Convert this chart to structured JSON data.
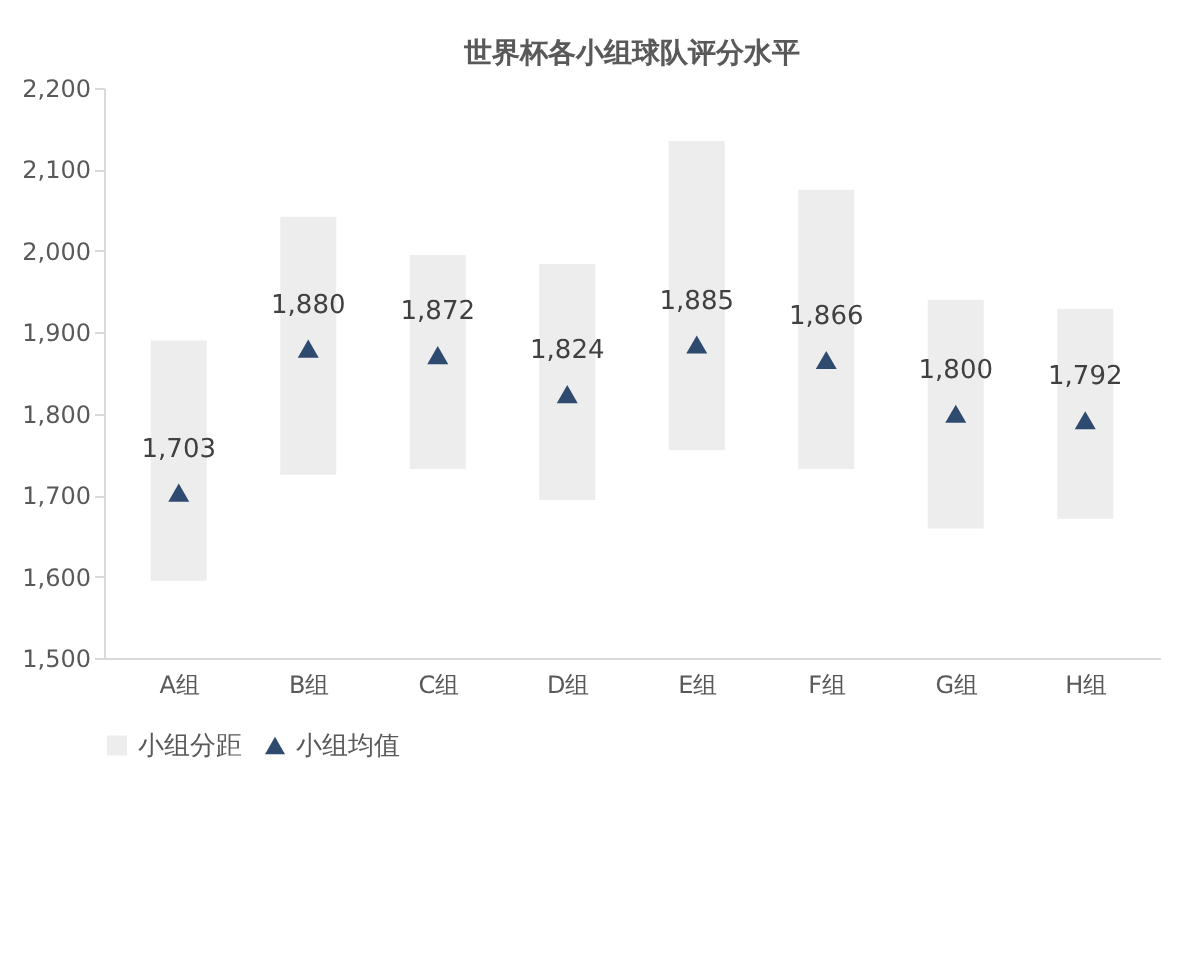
{
  "chart_data": {
    "type": "bar",
    "title": "世界杯各小组球队评分水平",
    "categories": [
      "A组",
      "B组",
      "C组",
      "D组",
      "E组",
      "F组",
      "G组",
      "H组"
    ],
    "series": [
      {
        "name": "小组分距",
        "type": "bar",
        "color": "#ededed",
        "base": [
          1595,
          1725,
          1732,
          1694,
          1755,
          1732,
          1659,
          1671
        ],
        "values": [
          295,
          317,
          263,
          290,
          380,
          343,
          281,
          258
        ]
      },
      {
        "name": "小组均值",
        "type": "scatter",
        "marker": "triangle",
        "color": "#2e4a6f",
        "values": [
          1703,
          1880,
          1872,
          1824,
          1885,
          1866,
          1800,
          1792
        ],
        "value_labels": [
          "1,703",
          "1,880",
          "1,872",
          "1,824",
          "1,885",
          "1,866",
          "1,800",
          "1,792"
        ]
      }
    ],
    "ylim": [
      1500,
      2200
    ],
    "yticks": [
      {
        "value": 1500,
        "label": "1,500"
      },
      {
        "value": 1600,
        "label": "1,600"
      },
      {
        "value": 1700,
        "label": "1,700"
      },
      {
        "value": 1800,
        "label": "1,800"
      },
      {
        "value": 1900,
        "label": "1,900"
      },
      {
        "value": 2000,
        "label": "2,000"
      },
      {
        "value": 2100,
        "label": "2,100"
      },
      {
        "value": 2200,
        "label": "2,200"
      }
    ],
    "grid": false,
    "legend": "bottom"
  }
}
